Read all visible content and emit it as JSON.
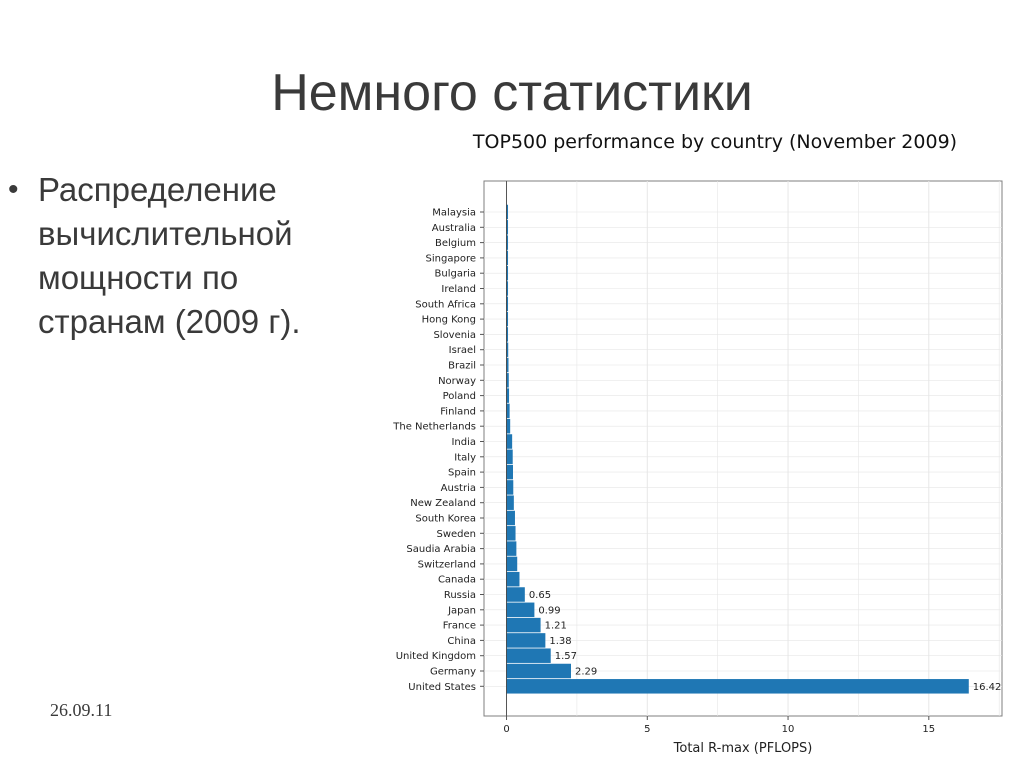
{
  "slide": {
    "title": "Немного статистики",
    "bullet": "Распределение вычислительной мощности по странам (2009 г).",
    "date": "26.09.11"
  },
  "colors": {
    "bar": "#1f77b4",
    "text": "#3a3a3a",
    "grid": "#e6e6e6",
    "frame": "#7f7f7f"
  },
  "chart_data": {
    "type": "bar",
    "orientation": "horizontal",
    "title": "TOP500 performance by country (November 2009)",
    "xlabel": "Total R-max (PFLOPS)",
    "ylabel": "",
    "xlim": [
      -0.8,
      17.6
    ],
    "xticks": [
      0,
      5,
      10,
      15
    ],
    "grid": true,
    "categories": [
      "Malaysia",
      "Australia",
      "Belgium",
      "Singapore",
      "Bulgaria",
      "Ireland",
      "South Africa",
      "Hong Kong",
      "Slovenia",
      "Israel",
      "Brazil",
      "Norway",
      "Poland",
      "Finland",
      "The Netherlands",
      "India",
      "Italy",
      "Spain",
      "Austria",
      "New Zealand",
      "South Korea",
      "Sweden",
      "Saudia Arabia",
      "Switzerland",
      "Canada",
      "Russia",
      "Japan",
      "France",
      "China",
      "United Kingdom",
      "Germany",
      "United States"
    ],
    "values": [
      0.01,
      0.02,
      0.02,
      0.03,
      0.03,
      0.03,
      0.04,
      0.04,
      0.05,
      0.06,
      0.07,
      0.08,
      0.09,
      0.11,
      0.13,
      0.2,
      0.22,
      0.23,
      0.24,
      0.26,
      0.3,
      0.32,
      0.35,
      0.38,
      0.46,
      0.65,
      0.99,
      1.21,
      1.38,
      1.57,
      2.29,
      16.42
    ],
    "data_labels": [
      "",
      "",
      "",
      "",
      "",
      "",
      "",
      "",
      "",
      "",
      "",
      "",
      "",
      "",
      "",
      "",
      "",
      "",
      "",
      "",
      "",
      "",
      "",
      "",
      "",
      "0.65",
      "0.99",
      "1.21",
      "1.38",
      "1.57",
      "2.29",
      "16.42"
    ]
  }
}
